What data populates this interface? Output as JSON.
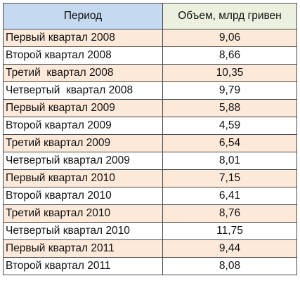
{
  "table": {
    "headers": [
      "Период",
      "Объем, млрд гривен"
    ],
    "rows": [
      {
        "period": "Первый квартал 2008",
        "volume": "9,06"
      },
      {
        "period": "Второй квартал 2008",
        "volume": "8,66"
      },
      {
        "period": "Третий  квартал 2008",
        "volume": "10,35"
      },
      {
        "period": "Четвертый  квартал 2008",
        "volume": "9,79"
      },
      {
        "period": "Первый квартал 2009",
        "volume": "5,88"
      },
      {
        "period": "Второй квартал 2009",
        "volume": "4,59"
      },
      {
        "period": "Третий квартал 2009",
        "volume": "6,54"
      },
      {
        "period": "Четвертый квартал 2009",
        "volume": "8,01"
      },
      {
        "period": "Первый квартал 2010",
        "volume": "7,15"
      },
      {
        "period": "Второй квартал 2010",
        "volume": "6,41"
      },
      {
        "period": "Третий квартал 2010",
        "volume": "8,76"
      },
      {
        "period": "Четвертый квартал 2010",
        "volume": "11,75"
      },
      {
        "period": "Первый квартал 2011",
        "volume": "9,44"
      },
      {
        "period": "Второй квартал 2011",
        "volume": "8,08"
      }
    ]
  },
  "colors": {
    "header_period_bg": "#c5d9f1",
    "header_volume_bg": "#ebf1de",
    "shaded_row_bg": "#fde9d9",
    "plain_row_bg": "#ffffff",
    "border": "#4a4a4a"
  }
}
